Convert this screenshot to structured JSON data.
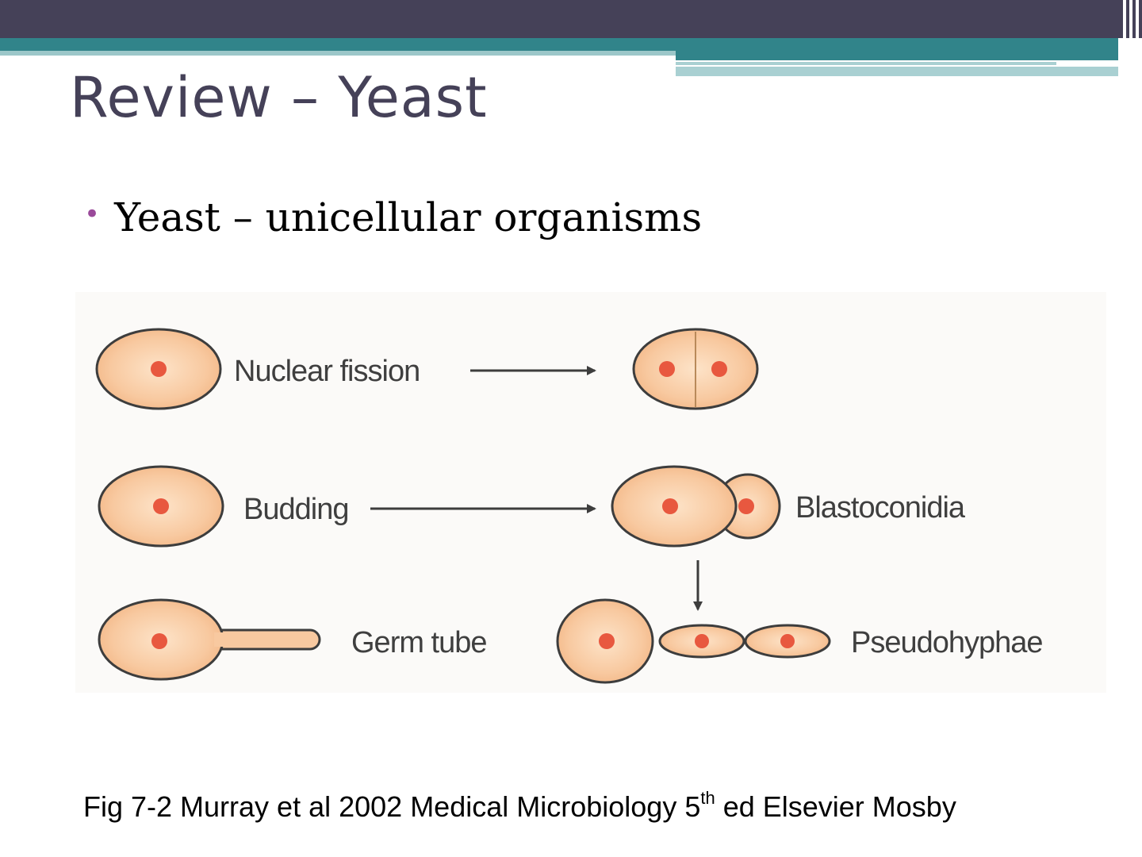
{
  "slide": {
    "title": "Review – Yeast",
    "bullets": [
      "Yeast – unicellular organisms"
    ]
  },
  "diagram": {
    "labels": {
      "nuclear_fission": "Nuclear fission",
      "budding": "Budding",
      "blastoconidia": "Blastoconidia",
      "germ_tube": "Germ tube",
      "pseudohyphae": "Pseudohyphae"
    },
    "colors": {
      "cell_fill": "#f8c9a0",
      "nucleus": "#e8583f",
      "outline": "#3d3d3d"
    }
  },
  "caption": {
    "text_before": "Fig 7-2 Murray et al 2002 Medical Microbiology 5",
    "superscript": "th",
    "text_after": " ed Elsevier Mosby"
  },
  "theme": {
    "title_color": "#454158",
    "band_dark": "#454158",
    "band_teal": "#31848a",
    "bullet_color": "#9a4a9a"
  }
}
